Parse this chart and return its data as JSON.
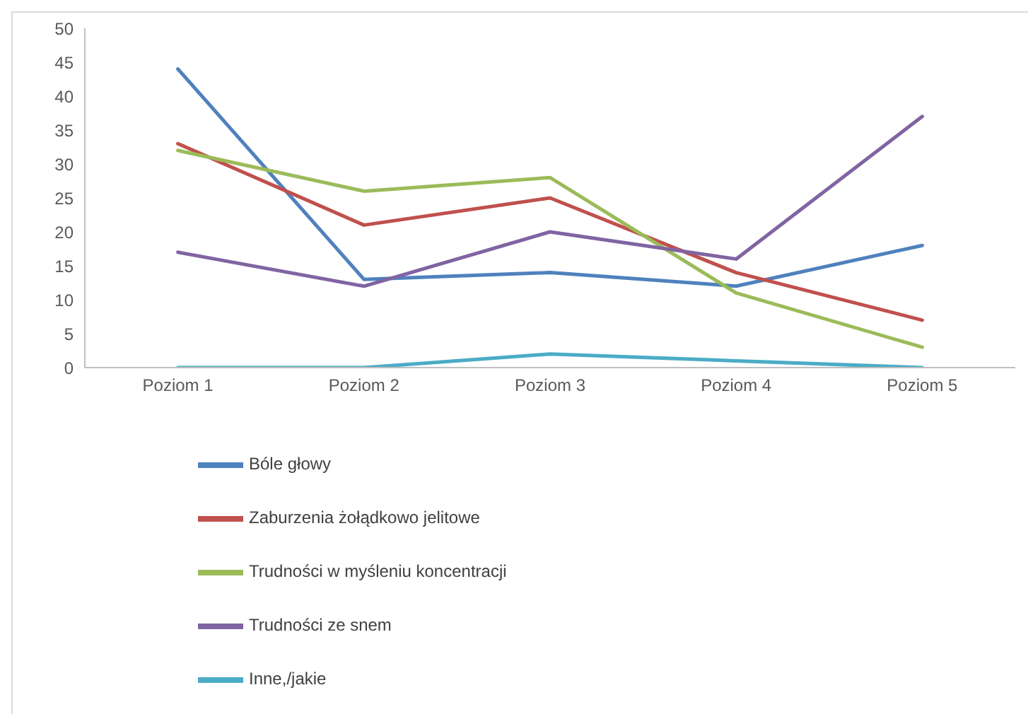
{
  "chart_data": {
    "type": "line",
    "categories": [
      "Poziom 1",
      "Poziom 2",
      "Poziom 3",
      "Poziom 4",
      "Poziom 5"
    ],
    "series": [
      {
        "name": "Bóle głowy",
        "color": "#4f81bd",
        "values": [
          44,
          13,
          14,
          12,
          18
        ]
      },
      {
        "name": "Zaburzenia żołądkowo jelitowe",
        "color": "#c0504d",
        "values": [
          33,
          21,
          25,
          14,
          7
        ]
      },
      {
        "name": "Trudności w myśleniu koncentracji",
        "color": "#9bbb59",
        "values": [
          32,
          26,
          28,
          11,
          3
        ]
      },
      {
        "name": "Trudności ze snem",
        "color": "#8064a2",
        "values": [
          17,
          12,
          20,
          16,
          37
        ]
      },
      {
        "name": "Inne,/jakie",
        "color": "#4bacc6",
        "values": [
          0,
          0,
          2,
          1,
          0
        ]
      }
    ],
    "ylim": [
      0,
      50
    ],
    "yticks": [
      0,
      5,
      10,
      15,
      20,
      25,
      30,
      35,
      40,
      45,
      50
    ],
    "legend": "bottom",
    "marker": "none"
  }
}
